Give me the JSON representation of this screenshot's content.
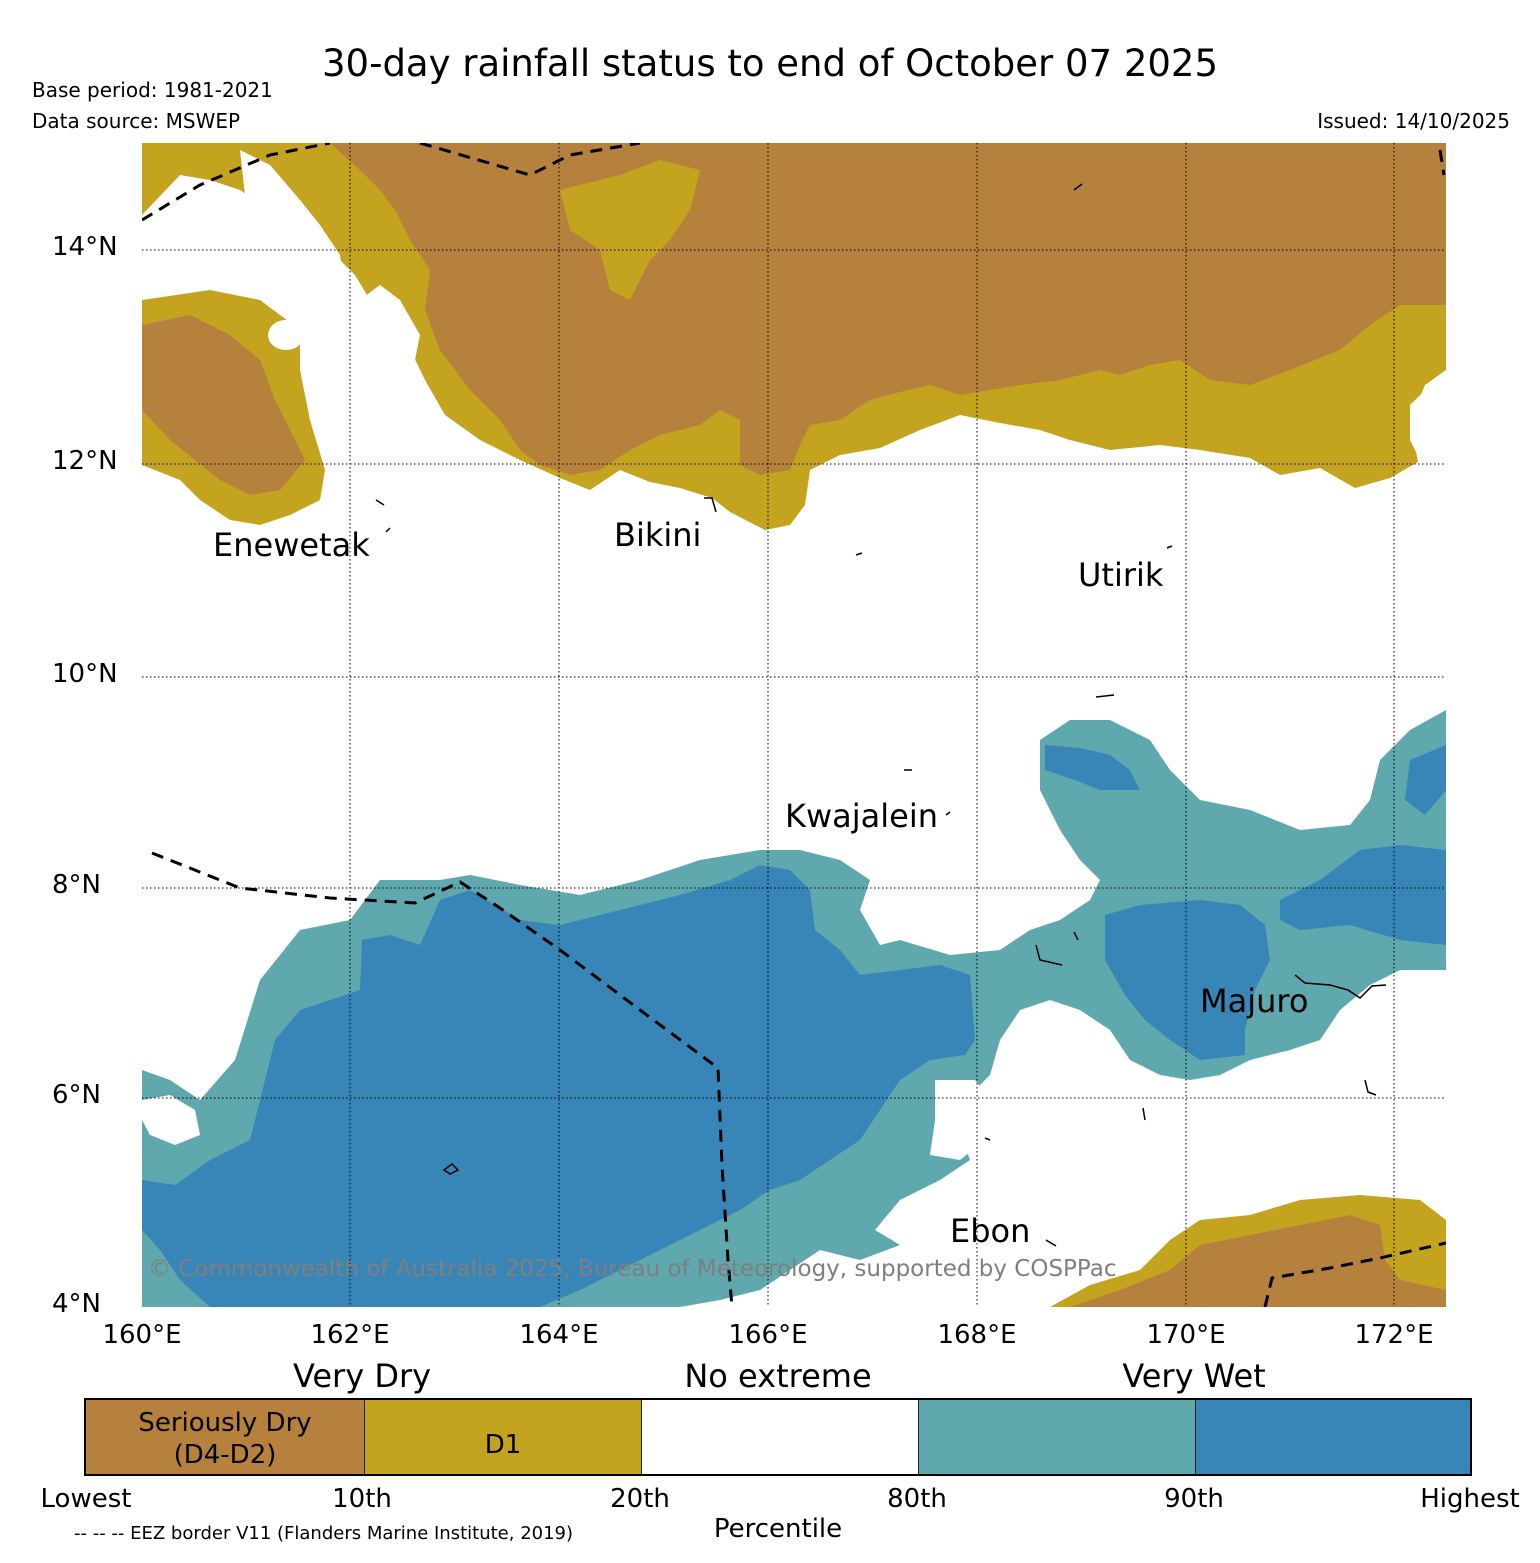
{
  "header": {
    "title": "30-day rainfall status to end of October 07 2025",
    "base_period": "Base period: 1981-2021",
    "data_source": "Data source: MSWEP",
    "issued": "Issued: 14/10/2025"
  },
  "map": {
    "lat_labels": [
      "14°N",
      "12°N",
      "10°N",
      "8°N",
      "6°N",
      "4°N"
    ],
    "lon_labels": [
      "160°E",
      "162°E",
      "164°E",
      "166°E",
      "168°E",
      "170°E",
      "172°E"
    ],
    "places": {
      "enewetak": "Enewetak",
      "bikini": "Bikini",
      "utirik": "Utirik",
      "kwajalein": "Kwajalein",
      "majuro": "Majuro",
      "ebon": "Ebon"
    },
    "copyright": "© Commonwealth of Australia 2025, Bureau of Meteorology, supported by COSPPac",
    "colors": {
      "seriously_dry": "#b5813c",
      "d1": "#c4a41f",
      "no_extreme": "#ffffff",
      "wet": "#5ea8ae",
      "very_wet": "#3886b8"
    }
  },
  "legend": {
    "categories": {
      "very_dry": "Very Dry",
      "no_extreme": "No extreme",
      "very_wet": "Very Wet"
    },
    "segments": {
      "seriously_dry_line1": "Seriously Dry",
      "seriously_dry_line2": "(D4-D2)",
      "d1": "D1"
    },
    "ticks": [
      "Lowest",
      "10th",
      "20th",
      "80th",
      "90th",
      "Highest"
    ],
    "xlabel": "Percentile",
    "eez_note": "-- -- -- EEZ border V11 (Flanders Marine Institute, 2019)"
  }
}
